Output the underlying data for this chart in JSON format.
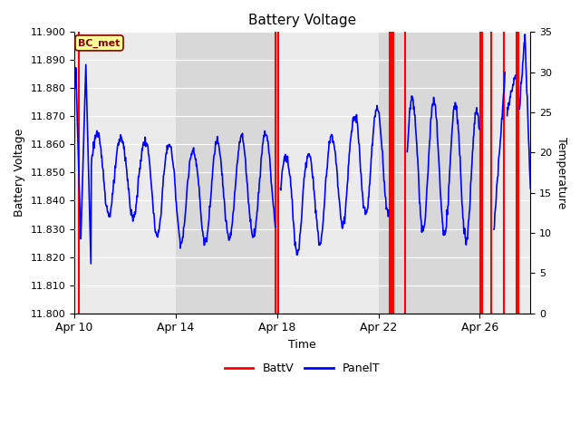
{
  "title": "Battery Voltage",
  "ylabel_left": "Battery Voltage",
  "ylabel_right": "Temperature",
  "xlabel": "Time",
  "ylim_left": [
    11.8,
    11.9
  ],
  "ylim_right": [
    0,
    35
  ],
  "yticks_left": [
    11.8,
    11.81,
    11.82,
    11.83,
    11.84,
    11.85,
    11.86,
    11.87,
    11.88,
    11.89,
    11.9
  ],
  "yticks_right": [
    0,
    5,
    10,
    15,
    20,
    25,
    30,
    35
  ],
  "xtick_positions": [
    0,
    4,
    8,
    12,
    16
  ],
  "xtick_labels": [
    "Apr 10",
    "Apr 14",
    "Apr 18",
    "Apr 22",
    "Apr 26"
  ],
  "annotation_label": "BC_met",
  "annotation_color": "#8B0000",
  "annotation_bg": "#FFFF99",
  "plot_bg_light": "#EBEBEB",
  "plot_bg_dark": "#D8D8D8",
  "grid_color": "#FFFFFF",
  "battv_color": "#FF0000",
  "panelt_color": "#0000FF",
  "legend_battv": "BattV",
  "legend_panelt": "PanelT",
  "total_days": 18.0,
  "battv_spikes": [
    0.18,
    7.95,
    8.05,
    12.45,
    12.52,
    12.58,
    13.05,
    16.02,
    16.08,
    16.45,
    16.95,
    17.45,
    17.52
  ],
  "band_edges": [
    0,
    4,
    8,
    12,
    16,
    18
  ]
}
